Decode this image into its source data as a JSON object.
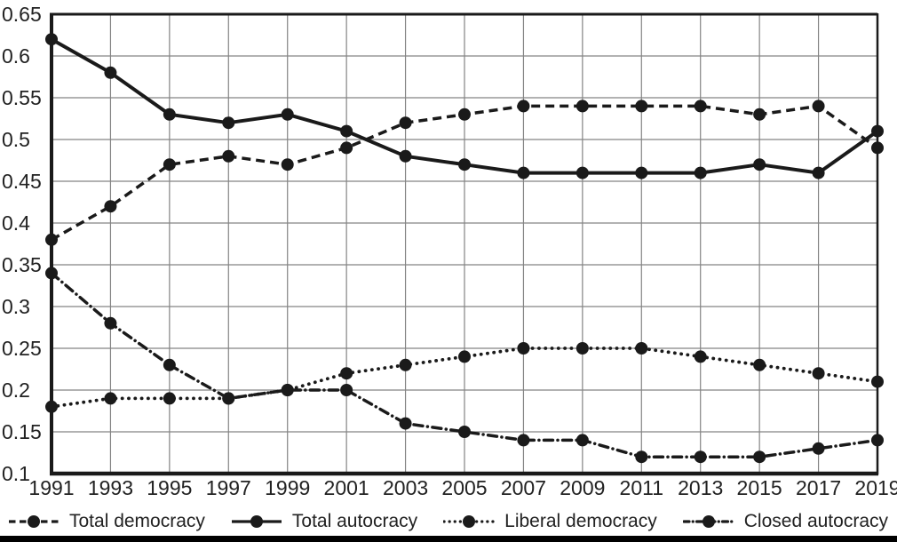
{
  "figure": {
    "background": "#ffffff",
    "line_color": "#1a1a1a",
    "grid_color": "#848484",
    "text_color": "#222222",
    "bottom_bar_color": "#000000"
  },
  "chart_data": {
    "type": "line",
    "title": "",
    "xlabel": "",
    "ylabel": "",
    "x": [
      1991,
      1993,
      1995,
      1997,
      1999,
      2001,
      2003,
      2005,
      2007,
      2009,
      2011,
      2013,
      2015,
      2017,
      2019
    ],
    "xtick_labels": [
      "1991",
      "1993",
      "1995",
      "1997",
      "1999",
      "2001",
      "2003",
      "2005",
      "2007",
      "2009",
      "2011",
      "2013",
      "2015",
      "2017",
      "2019"
    ],
    "ytick_labels": [
      "0.65",
      "0.6",
      "0.55",
      "0.5",
      "0.45",
      "0.4",
      "0.35",
      "0.3",
      "0.25",
      "0.2",
      "0.15",
      "0.1"
    ],
    "ylim": [
      0.1,
      0.65
    ],
    "ytick_step": 0.05,
    "grid": true,
    "legend_position": "bottom",
    "marker": "filled-circle",
    "series": [
      {
        "name": "Total democracy",
        "style": "dashed",
        "values": [
          0.38,
          0.42,
          0.47,
          0.48,
          0.47,
          0.49,
          0.52,
          0.53,
          0.54,
          0.54,
          0.54,
          0.54,
          0.53,
          0.54,
          0.49
        ]
      },
      {
        "name": "Total autocracy",
        "style": "solid",
        "values": [
          0.62,
          0.58,
          0.53,
          0.52,
          0.53,
          0.51,
          0.48,
          0.47,
          0.46,
          0.46,
          0.46,
          0.46,
          0.47,
          0.46,
          0.51
        ]
      },
      {
        "name": "Liberal democracy",
        "style": "dotted",
        "values": [
          0.18,
          0.19,
          0.19,
          0.19,
          0.2,
          0.22,
          0.23,
          0.24,
          0.25,
          0.25,
          0.25,
          0.24,
          0.23,
          0.22,
          0.21
        ]
      },
      {
        "name": "Closed autocracy",
        "style": "dashdot",
        "values": [
          0.34,
          0.28,
          0.23,
          0.19,
          0.2,
          0.2,
          0.16,
          0.15,
          0.14,
          0.14,
          0.12,
          0.12,
          0.12,
          0.13,
          0.14
        ]
      }
    ]
  },
  "legend": {
    "items": [
      {
        "label": "Total democracy",
        "style": "dashed"
      },
      {
        "label": "Total autocracy",
        "style": "solid"
      },
      {
        "label": "Liberal democracy",
        "style": "dotted"
      },
      {
        "label": "Closed autocracy",
        "style": "dashdot"
      }
    ]
  }
}
